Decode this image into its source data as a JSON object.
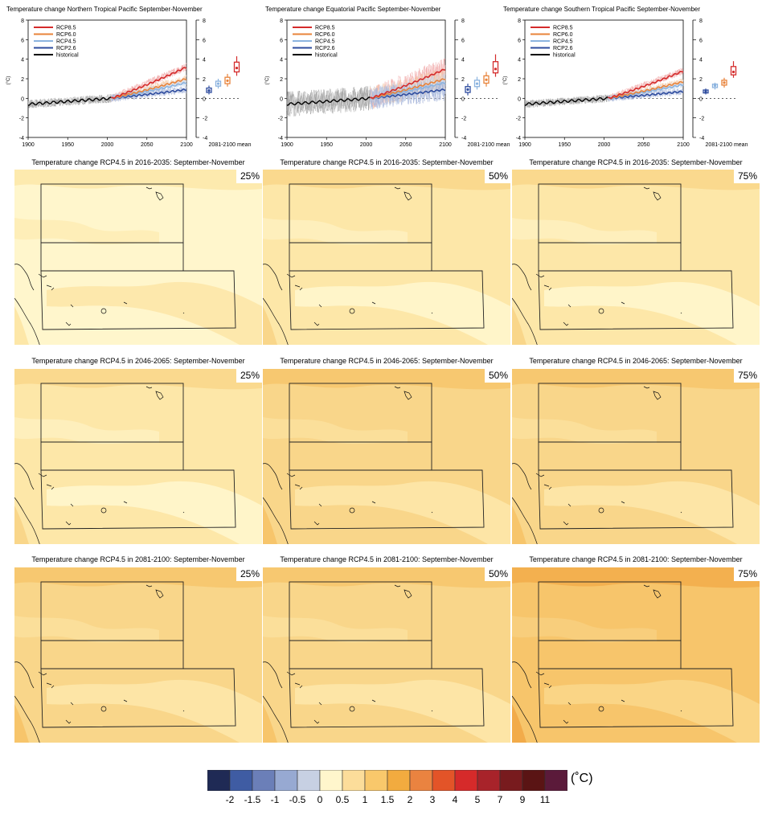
{
  "timeseries": [
    {
      "title": "Temperature change Northern Tropical Pacific September-November",
      "noise": 0.9,
      "end": {
        "rcp85": 3.2,
        "rcp60": 2.0,
        "rcp45": 1.6,
        "rcp26": 0.9
      },
      "box": [
        {
          "c": 0.8,
          "lo": 0.4,
          "hi": 1.3
        },
        {
          "c": 1.5,
          "lo": 1.0,
          "hi": 2.0
        },
        {
          "c": 1.8,
          "lo": 1.2,
          "hi": 2.5
        },
        {
          "c": 3.1,
          "lo": 2.3,
          "hi": 4.3
        }
      ]
    },
    {
      "title": "Temperature change Equatorial Pacific September-November",
      "noise": 2.6,
      "end": {
        "rcp85": 3.0,
        "rcp60": 2.0,
        "rcp45": 1.6,
        "rcp26": 0.9
      },
      "box": [
        {
          "c": 0.9,
          "lo": 0.3,
          "hi": 1.5
        },
        {
          "c": 1.5,
          "lo": 0.9,
          "hi": 2.2
        },
        {
          "c": 1.9,
          "lo": 1.2,
          "hi": 2.7
        },
        {
          "c": 3.0,
          "lo": 2.2,
          "hi": 4.5
        }
      ]
    },
    {
      "title": "Temperature change Southern Tropical Pacific September-November",
      "noise": 0.8,
      "end": {
        "rcp85": 2.8,
        "rcp60": 1.7,
        "rcp45": 1.4,
        "rcp26": 0.7
      },
      "box": [
        {
          "c": 0.7,
          "lo": 0.4,
          "hi": 1.0
        },
        {
          "c": 1.3,
          "lo": 0.9,
          "hi": 1.6
        },
        {
          "c": 1.6,
          "lo": 1.1,
          "hi": 2.1
        },
        {
          "c": 2.7,
          "lo": 2.1,
          "hi": 3.8
        }
      ]
    }
  ],
  "ts_axes": {
    "y_ticks": [
      "8",
      "6",
      "4",
      "2",
      "0",
      "-2",
      "-4"
    ],
    "x_ticks": [
      "1900",
      "1950",
      "2000",
      "2050",
      "2100"
    ],
    "unit": "(°C)",
    "mean_label": "2081-2100 mean"
  },
  "legend": [
    {
      "label": "RCP8.5",
      "color": "#d42b2b"
    },
    {
      "label": "RCP6.0",
      "color": "#e8833a"
    },
    {
      "label": "RCP4.5",
      "color": "#8bb3df"
    },
    {
      "label": "RCP2.6",
      "color": "#2e4c9e"
    },
    {
      "label": "historical",
      "color": "#000000"
    }
  ],
  "maps": [
    {
      "title": "Temperature change RCP4.5 in 2016-2035: September-November",
      "pct": "25%",
      "level": 0
    },
    {
      "title": "Temperature change RCP4.5 in 2016-2035: September-November",
      "pct": "50%",
      "level": 1
    },
    {
      "title": "Temperature change RCP4.5 in 2016-2035: September-November",
      "pct": "75%",
      "level": 1
    },
    {
      "title": "Temperature change RCP4.5 in 2046-2065: September-November",
      "pct": "25%",
      "level": 1
    },
    {
      "title": "Temperature change RCP4.5 in 2046-2065: September-November",
      "pct": "50%",
      "level": 2
    },
    {
      "title": "Temperature change RCP4.5 in 2046-2065: September-November",
      "pct": "75%",
      "level": 2
    },
    {
      "title": "Temperature change RCP4.5 in 2081-2100: September-November",
      "pct": "25%",
      "level": 2
    },
    {
      "title": "Temperature change RCP4.5 in 2081-2100: September-November",
      "pct": "50%",
      "level": 2
    },
    {
      "title": "Temperature change RCP4.5 in 2081-2100: September-November",
      "pct": "75%",
      "level": 3
    }
  ],
  "colorbar": {
    "colors": [
      "#1f2a55",
      "#3f5ca3",
      "#6b7fb8",
      "#97a9d2",
      "#c7d0e3",
      "#fff6cc",
      "#fcdd9a",
      "#f9c86b",
      "#f2ab3f",
      "#ea8340",
      "#e35428",
      "#d62a2a",
      "#a8232a",
      "#781b1e",
      "#5a1414",
      "#5b1a3a"
    ],
    "labels": [
      "-2",
      "-1.5",
      "-1",
      "-0.5",
      "0",
      "0.5",
      "1",
      "1.5",
      "2",
      "3",
      "4",
      "5",
      "7",
      "9",
      "11"
    ],
    "unit": "(˚C)"
  },
  "chart_data": [
    {
      "type": "line",
      "title": "Temperature change Northern Tropical Pacific September-November",
      "ylabel": "(°C)",
      "xlim": [
        1900,
        2100
      ],
      "ylim": [
        -4,
        8
      ],
      "series": [
        {
          "name": "historical",
          "x": [
            1900,
            1950,
            2005
          ],
          "y": [
            -0.6,
            -0.4,
            0.0
          ]
        },
        {
          "name": "RCP8.5",
          "x": [
            2005,
            2100
          ],
          "y": [
            0.0,
            3.2
          ]
        },
        {
          "name": "RCP6.0",
          "x": [
            2005,
            2100
          ],
          "y": [
            0.0,
            2.0
          ]
        },
        {
          "name": "RCP4.5",
          "x": [
            2005,
            2100
          ],
          "y": [
            0.0,
            1.6
          ]
        },
        {
          "name": "RCP2.6",
          "x": [
            2005,
            2100
          ],
          "y": [
            0.0,
            0.9
          ]
        }
      ]
    },
    {
      "type": "line",
      "title": "Temperature change Equatorial Pacific September-November",
      "ylabel": "(°C)",
      "xlim": [
        1900,
        2100
      ],
      "ylim": [
        -4,
        8
      ],
      "series": [
        {
          "name": "historical",
          "x": [
            1900,
            1950,
            2005
          ],
          "y": [
            -0.5,
            -0.4,
            0.0
          ]
        },
        {
          "name": "RCP8.5",
          "x": [
            2005,
            2100
          ],
          "y": [
            0.0,
            3.0
          ]
        },
        {
          "name": "RCP6.0",
          "x": [
            2005,
            2100
          ],
          "y": [
            0.0,
            2.0
          ]
        },
        {
          "name": "RCP4.5",
          "x": [
            2005,
            2100
          ],
          "y": [
            0.0,
            1.6
          ]
        },
        {
          "name": "RCP2.6",
          "x": [
            2005,
            2100
          ],
          "y": [
            0.0,
            0.9
          ]
        }
      ]
    },
    {
      "type": "line",
      "title": "Temperature change Southern Tropical Pacific September-November",
      "ylabel": "(°C)",
      "xlim": [
        1900,
        2100
      ],
      "ylim": [
        -4,
        8
      ],
      "series": [
        {
          "name": "historical",
          "x": [
            1900,
            1950,
            2005
          ],
          "y": [
            -0.6,
            -0.5,
            0.0
          ]
        },
        {
          "name": "RCP8.5",
          "x": [
            2005,
            2100
          ],
          "y": [
            0.0,
            2.8
          ]
        },
        {
          "name": "RCP6.0",
          "x": [
            2005,
            2100
          ],
          "y": [
            0.0,
            1.7
          ]
        },
        {
          "name": "RCP4.5",
          "x": [
            2005,
            2100
          ],
          "y": [
            0.0,
            1.4
          ]
        },
        {
          "name": "RCP2.6",
          "x": [
            2005,
            2100
          ],
          "y": [
            0.0,
            0.7
          ]
        }
      ]
    }
  ]
}
